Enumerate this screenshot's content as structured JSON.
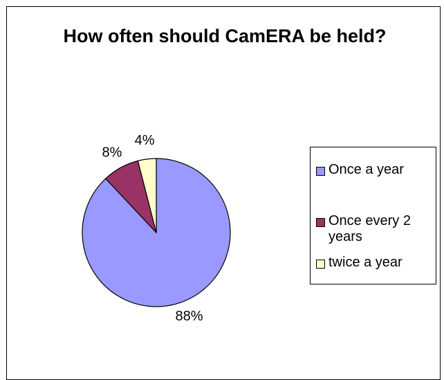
{
  "chart_data": {
    "type": "pie",
    "title": "How often should CamERA be held?",
    "categories": [
      "Once a year",
      "Once every 2 years",
      "twice a year"
    ],
    "values": [
      88,
      8,
      4
    ],
    "value_labels": [
      "88%",
      "8%",
      "4%"
    ],
    "colors": [
      "#9999ff",
      "#993366",
      "#ffffcc"
    ],
    "legend_position": "right",
    "legend": [
      "Once a year",
      "Once every 2 years",
      "twice a year"
    ]
  }
}
